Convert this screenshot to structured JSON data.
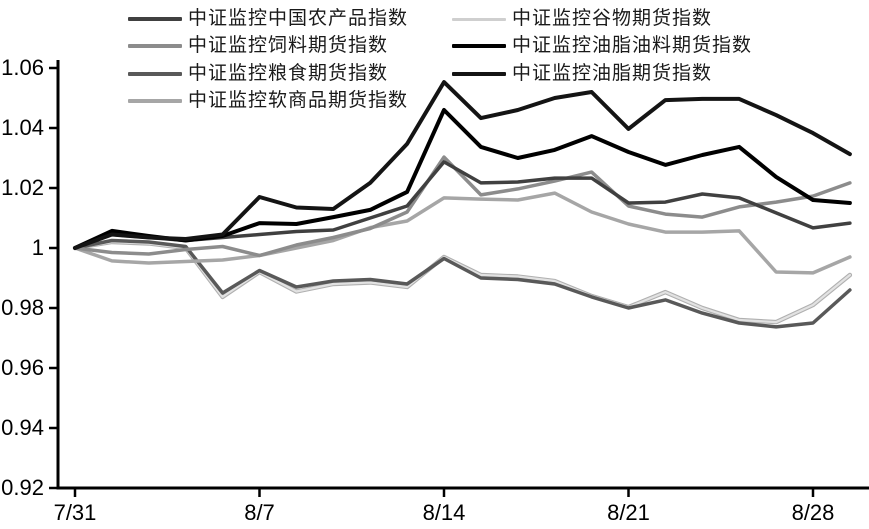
{
  "chart_data": {
    "type": "line",
    "title": "",
    "xlabel": "",
    "ylabel": "",
    "ylim": [
      0.92,
      1.06
    ],
    "yticks": [
      {
        "value": 1.06,
        "label": "1.06"
      },
      {
        "value": 1.04,
        "label": "1.04"
      },
      {
        "value": 1.02,
        "label": "1.02"
      },
      {
        "value": 1.0,
        "label": "1"
      },
      {
        "value": 0.98,
        "label": "0.98"
      },
      {
        "value": 0.96,
        "label": "0.96"
      },
      {
        "value": 0.94,
        "label": "0.94"
      },
      {
        "value": 0.92,
        "label": "0.92"
      }
    ],
    "xticks": [
      {
        "index": 0,
        "label": "7/31"
      },
      {
        "index": 5,
        "label": "8/7"
      },
      {
        "index": 10,
        "label": "8/14"
      },
      {
        "index": 15,
        "label": "8/21"
      },
      {
        "index": 20,
        "label": "8/28"
      }
    ],
    "n_points": 22,
    "grid": false,
    "legend_position": "top-two-columns",
    "axis_color": "#000000",
    "series": [
      {
        "name": "中证监控中国农产品指数",
        "color": "#404040",
        "width": 3.5,
        "values": [
          1.0,
          1.0045,
          1.0035,
          1.0025,
          1.0035,
          1.0045,
          1.0055,
          1.006,
          1.01,
          1.014,
          1.0287,
          1.0217,
          1.022,
          1.0233,
          1.0233,
          1.015,
          1.0153,
          1.018,
          1.0167,
          1.0117,
          1.0067,
          1.0083
        ]
      },
      {
        "name": "中证监控谷物期货指数",
        "color": "#e2e2e2",
        "edge": "#b0b0b0",
        "width": 2.2,
        "values": [
          1.0,
          1.002,
          1.0015,
          1.0,
          0.9837,
          0.992,
          0.9855,
          0.988,
          0.9885,
          0.987,
          0.997,
          0.991,
          0.9905,
          0.989,
          0.984,
          0.9803,
          0.9853,
          0.98,
          0.976,
          0.9753,
          0.981,
          0.991
        ]
      },
      {
        "name": "中证监控饲料期货指数",
        "color": "#8c8c8c",
        "width": 3.5,
        "values": [
          1.0,
          0.9985,
          0.998,
          0.9995,
          1.0005,
          0.9975,
          1.001,
          1.0035,
          1.0065,
          1.012,
          1.0303,
          1.0177,
          1.0197,
          1.0223,
          1.0253,
          1.014,
          1.0113,
          1.0103,
          1.0137,
          1.0153,
          1.0173,
          1.0217
        ]
      },
      {
        "name": "中证监控油脂油料期货指数",
        "color": "#000000",
        "width": 4,
        "values": [
          1.0,
          1.0057,
          1.004,
          1.0025,
          1.004,
          1.0083,
          1.008,
          1.0103,
          1.0127,
          1.0187,
          1.046,
          1.0337,
          1.03,
          1.0327,
          1.0373,
          1.032,
          1.0277,
          1.031,
          1.0337,
          1.0237,
          1.016,
          1.015
        ]
      },
      {
        "name": "中证监控粮食期货指数",
        "color": "#595959",
        "width": 3.5,
        "values": [
          1.0,
          1.0025,
          1.002,
          1.0005,
          0.985,
          0.9925,
          0.987,
          0.989,
          0.9895,
          0.988,
          0.9965,
          0.99,
          0.9895,
          0.988,
          0.9837,
          0.98,
          0.9827,
          0.9783,
          0.975,
          0.9737,
          0.975,
          0.986
        ]
      },
      {
        "name": "中证监控油脂期货指数",
        "color": "#141414",
        "width": 4,
        "values": [
          1.0,
          1.0045,
          1.0035,
          1.003,
          1.0045,
          1.017,
          1.0135,
          1.013,
          1.0217,
          1.0347,
          1.0553,
          1.0433,
          1.046,
          1.05,
          1.052,
          1.0397,
          1.0493,
          1.0497,
          1.0497,
          1.0443,
          1.0383,
          1.0313
        ]
      },
      {
        "name": "中证监控软商品期货指数",
        "color": "#a6a6a6",
        "width": 3.5,
        "values": [
          1.0,
          0.9957,
          0.995,
          0.9955,
          0.996,
          0.9975,
          1.0,
          1.0025,
          1.0068,
          1.009,
          1.0167,
          1.0163,
          1.016,
          1.0183,
          1.012,
          1.008,
          1.0053,
          1.0053,
          1.0057,
          0.992,
          0.9917,
          0.997
        ]
      }
    ],
    "draw_order": [
      1,
      4,
      6,
      2,
      0,
      3,
      5
    ],
    "legend_columns": {
      "left": [
        0,
        2,
        4,
        6
      ],
      "right": [
        1,
        3,
        5
      ]
    }
  }
}
